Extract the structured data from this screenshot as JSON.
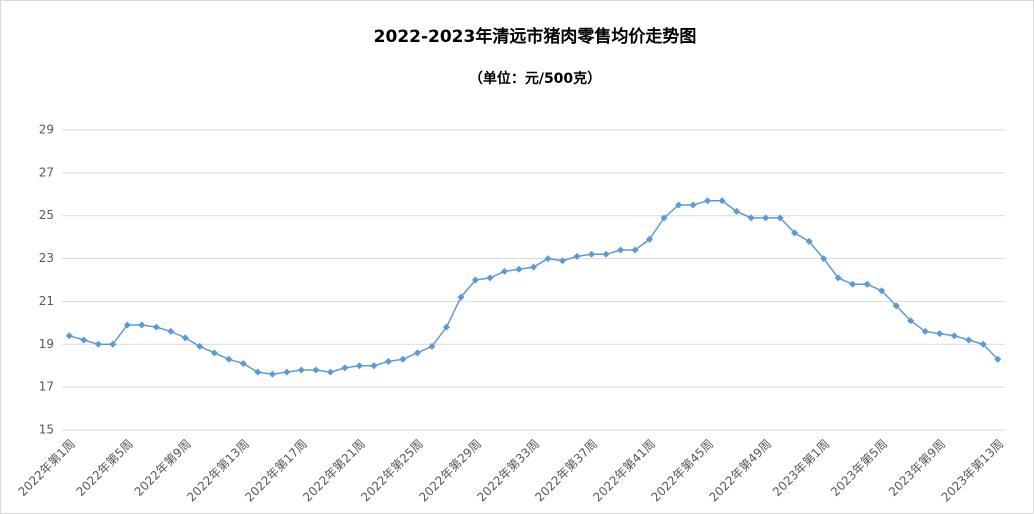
{
  "chart_data": {
    "type": "line",
    "title": "2022-2023年清远市猪肉零售均价走势图",
    "subtitle": "（单位：元/500克）",
    "categories": [
      "2022年第1周",
      null,
      null,
      null,
      "2022年第5周",
      null,
      null,
      null,
      "2022年第9周",
      null,
      null,
      null,
      "2022年第13周",
      null,
      null,
      null,
      "2022年第17周",
      null,
      null,
      null,
      "2022年第21周",
      null,
      null,
      null,
      "2022年第25周",
      null,
      null,
      null,
      "2022年第29周",
      null,
      null,
      null,
      "2022年第33周",
      null,
      null,
      null,
      "2022年第37周",
      null,
      null,
      null,
      "2022年第41周",
      null,
      null,
      null,
      "2022年第45周",
      null,
      null,
      null,
      "2022年第49周",
      null,
      null,
      null,
      "2023年第1周",
      null,
      null,
      null,
      "2023年第5周",
      null,
      null,
      null,
      "2023年第9周",
      null,
      null,
      null,
      "2023年第13周"
    ],
    "values": [
      19.4,
      19.2,
      19.0,
      19.0,
      19.9,
      19.9,
      19.8,
      19.6,
      19.3,
      18.9,
      18.6,
      18.3,
      18.1,
      17.7,
      17.6,
      17.7,
      17.8,
      17.8,
      17.7,
      17.9,
      18.0,
      18.0,
      18.2,
      18.3,
      18.6,
      18.9,
      19.8,
      21.2,
      22.0,
      22.1,
      22.4,
      22.5,
      22.6,
      23.0,
      22.9,
      23.1,
      23.2,
      23.2,
      23.4,
      23.4,
      23.9,
      24.9,
      25.5,
      25.5,
      25.7,
      25.7,
      25.2,
      24.9,
      24.9,
      24.9,
      24.2,
      23.8,
      23.0,
      22.1,
      21.8,
      21.8,
      21.5,
      20.8,
      20.1,
      19.6,
      19.5,
      19.4,
      19.2,
      19.0,
      18.3
    ],
    "color": "#5b9bd5",
    "ylim": [
      15,
      29
    ],
    "yticks": [
      15,
      17,
      19,
      21,
      23,
      25,
      27,
      29
    ],
    "grid": true
  }
}
